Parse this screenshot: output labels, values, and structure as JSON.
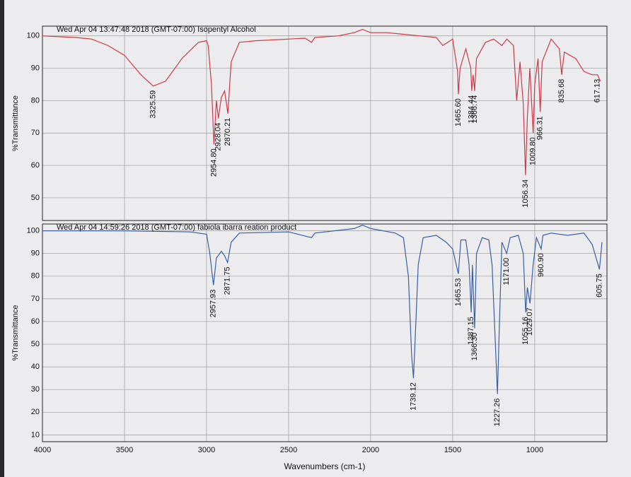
{
  "chart_data": [
    {
      "type": "line",
      "title": "Wed Apr 04 13:47:48 2018 (GMT-07:00)  Isopentyl Alcohol",
      "ylabel": "%Transmittance",
      "color": "#cc3a48",
      "x": [
        4000,
        3800,
        3700,
        3600,
        3500,
        3400,
        3325,
        3250,
        3150,
        3050,
        3000,
        2990,
        2970,
        2955,
        2940,
        2928,
        2910,
        2890,
        2870,
        2850,
        2800,
        2700,
        2500,
        2400,
        2360,
        2340,
        2200,
        2100,
        2050,
        2000,
        1900,
        1800,
        1700,
        1600,
        1560,
        1500,
        1470,
        1465.6,
        1455,
        1420,
        1390,
        1384,
        1375,
        1366.74,
        1355,
        1300,
        1250,
        1200,
        1170,
        1130,
        1110,
        1090,
        1070,
        1056.34,
        1045,
        1030,
        1009.8,
        1000,
        980,
        966.31,
        955,
        900,
        850,
        835.68,
        820,
        750,
        700,
        650,
        617.13,
        600
      ],
      "values": [
        100,
        99.5,
        99,
        97,
        94,
        88,
        84.5,
        86,
        93,
        98,
        98.5,
        97,
        85,
        66.5,
        80,
        74.5,
        81,
        83,
        76,
        92,
        98,
        98.5,
        99,
        99.3,
        98,
        99.5,
        100,
        101,
        102,
        101,
        101,
        100.5,
        100,
        99.5,
        97,
        99,
        89,
        82,
        90,
        96,
        90,
        83,
        88,
        83,
        93,
        98,
        99,
        97,
        99,
        97,
        80,
        92,
        79,
        57,
        75,
        90,
        70,
        85,
        93,
        76.5,
        92,
        99,
        96,
        88,
        95,
        93,
        89,
        88,
        88,
        86
      ],
      "xlim": [
        4000,
        560
      ],
      "ylim": [
        43,
        103
      ],
      "yticks": [
        100,
        90,
        80,
        70,
        60,
        50
      ],
      "annotations": [
        {
          "x": 3325.59,
          "y": 84.5,
          "label": "3325.59"
        },
        {
          "x": 2954.8,
          "y": 66.5,
          "label": "2954.80"
        },
        {
          "x": 2928.04,
          "y": 74.5,
          "label": "2928.04"
        },
        {
          "x": 2870.21,
          "y": 76,
          "label": "2870.21"
        },
        {
          "x": 1465.6,
          "y": 82,
          "label": "1465.60"
        },
        {
          "x": 1384.44,
          "y": 83,
          "label": "1384.44"
        },
        {
          "x": 1366.74,
          "y": 83,
          "label": "1366.74"
        },
        {
          "x": 1056.34,
          "y": 57,
          "label": "1056.34"
        },
        {
          "x": 1009.8,
          "y": 70,
          "label": "1009.80"
        },
        {
          "x": 966.31,
          "y": 76.5,
          "label": "966.31"
        },
        {
          "x": 835.68,
          "y": 88,
          "label": "835.68"
        },
        {
          "x": 617.13,
          "y": 88,
          "label": "617.13"
        }
      ]
    },
    {
      "type": "line",
      "title": "Wed Apr 04 14:59:26 2018 (GMT-07:00) fabiola ibarra reation product",
      "ylabel": "%Transmittance",
      "xlabel": "Wavenumbers (cm-1)",
      "color": "#3a5fa0",
      "x": [
        4000,
        3500,
        3100,
        3000,
        2980,
        2957.93,
        2940,
        2910,
        2890,
        2871.75,
        2850,
        2800,
        2500,
        2360,
        2340,
        2100,
        2050,
        2000,
        1850,
        1800,
        1770,
        1750,
        1739.12,
        1730,
        1710,
        1680,
        1600,
        1540,
        1500,
        1465.53,
        1450,
        1420,
        1400,
        1387.15,
        1380,
        1366.3,
        1355,
        1320,
        1280,
        1260,
        1240,
        1227.26,
        1215,
        1200,
        1171,
        1150,
        1100,
        1070,
        1055.16,
        1045,
        1029.07,
        1010,
        990,
        960.9,
        950,
        900,
        800,
        700,
        650,
        605.75,
        590
      ],
      "values": [
        100,
        100,
        99.5,
        98.5,
        90,
        76,
        88,
        91,
        89,
        86,
        95,
        99,
        99.5,
        97,
        99,
        101,
        102.5,
        101,
        99,
        97,
        80,
        45,
        35,
        50,
        85,
        97,
        98,
        95,
        92,
        81,
        96,
        96,
        85,
        64,
        85,
        57,
        90,
        97,
        96,
        85,
        50,
        28,
        60,
        95,
        90,
        97,
        98,
        90,
        64,
        75,
        68,
        85,
        97,
        92,
        98,
        99,
        98,
        99,
        94,
        83,
        95
      ],
      "xlim": [
        4000,
        560
      ],
      "ylim": [
        7,
        103
      ],
      "yticks": [
        100,
        90,
        80,
        70,
        60,
        50,
        40,
        30,
        20,
        10
      ],
      "xticks": [
        4000,
        3500,
        3000,
        2500,
        2000,
        1500,
        1000
      ],
      "annotations": [
        {
          "x": 2957.93,
          "y": 76,
          "label": "2957.93"
        },
        {
          "x": 2871.75,
          "y": 86,
          "label": "2871.75"
        },
        {
          "x": 1739.12,
          "y": 35,
          "label": "1739.12"
        },
        {
          "x": 1465.53,
          "y": 81,
          "label": "1465.53"
        },
        {
          "x": 1387.15,
          "y": 64,
          "label": "1387.15"
        },
        {
          "x": 1366.3,
          "y": 57,
          "label": "1366.30"
        },
        {
          "x": 1227.26,
          "y": 28,
          "label": "1227.26"
        },
        {
          "x": 1171,
          "y": 90,
          "label": "1171.00"
        },
        {
          "x": 1055.16,
          "y": 64,
          "label": "1055.16"
        },
        {
          "x": 1029.07,
          "y": 68,
          "label": "1029.07"
        },
        {
          "x": 960.9,
          "y": 92,
          "label": "960.90"
        },
        {
          "x": 605.75,
          "y": 83,
          "label": "605.75"
        }
      ]
    }
  ]
}
